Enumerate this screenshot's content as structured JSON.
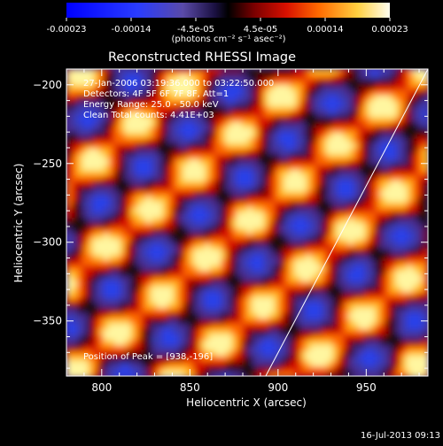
{
  "colorbar": {
    "tick_labels": [
      "-0.00023",
      "-0.00014",
      "-4.5e-05",
      "4.5e-05",
      "0.00014",
      "0.00023"
    ],
    "unit_label": "(photons cm⁻² s⁻¹ asec⁻²)",
    "range": [
      -0.00023,
      0.00023
    ]
  },
  "chart_data": {
    "type": "heatmap",
    "title": "Reconstructed RHESSI Image",
    "xlabel": "Heliocentric X (arcsec)",
    "ylabel": "Heliocentric Y (arcsec)",
    "xlim": [
      780,
      985
    ],
    "ylim": [
      -385,
      -190
    ],
    "x_ticks": [
      800,
      850,
      900,
      950
    ],
    "y_ticks": [
      -200,
      -250,
      -300,
      -350
    ],
    "x_tick_labels": [
      "800",
      "850",
      "900",
      "950"
    ],
    "y_tick_labels": [
      "−200",
      "−250",
      "−300",
      "−350"
    ],
    "annotations": [
      "27-Jan-2006 03:19:36.000 to 03:22:50.000",
      "Detectors: 4F 5F 6F 7F 8F, Att=1",
      "Energy Range: 25.0 - 50.0 keV",
      "Clean    Total counts: 4.41E+03"
    ],
    "peak_label": "Position of Peak = [938,-196]",
    "peak": [
      938,
      -196
    ],
    "limb_line": [
      [
        893,
        -385
      ],
      [
        985,
        -190
      ]
    ]
  },
  "footer_timestamp": "16-Jul-2013 09:13"
}
